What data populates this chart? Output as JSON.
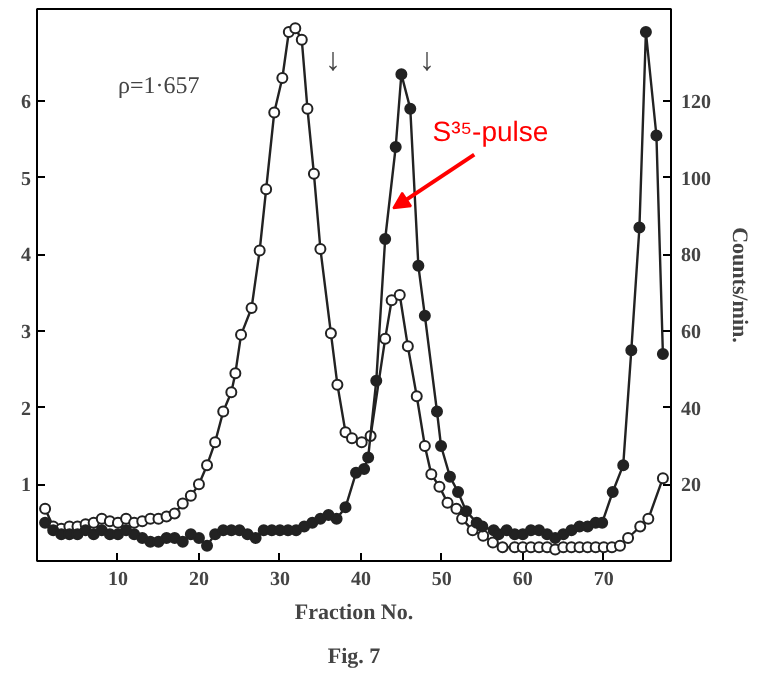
{
  "chart_data": {
    "type": "line",
    "xlabel": "Fraction No.",
    "y2label": "Counts/min.",
    "annotations": [
      "ρ=1·657",
      "Fig. 7",
      "↓",
      "↓",
      {
        "text": "S³⁵-pulse",
        "x": 44,
        "y": 4.6
      }
    ],
    "series": [
      {
        "color": "#222222",
        "marker": "open circle",
        "x": [
          1,
          2,
          3,
          4,
          5,
          6,
          7,
          8,
          9,
          10,
          11,
          12,
          13,
          14,
          15,
          16,
          17,
          18,
          19,
          20,
          21,
          22,
          23,
          24,
          24.5,
          25.2,
          26.5,
          27.5,
          28.3,
          29.3,
          30.3,
          31.1,
          31.9,
          32.7,
          33.4,
          34.2,
          35,
          36.3,
          37.1,
          38.1,
          38.9,
          40.1,
          41.2,
          43,
          43.8,
          44.8,
          45.8,
          46.9,
          47.9,
          48.7,
          49.7,
          50.7,
          51.8,
          52.5,
          53.8,
          55.1,
          56.3,
          57.5,
          59,
          60,
          61,
          62,
          63,
          64,
          65,
          66,
          67,
          68,
          69,
          70,
          71,
          72,
          73,
          74.5,
          75.5,
          77.3
        ],
        "values": [
          0.68,
          0.45,
          0.42,
          0.45,
          0.45,
          0.48,
          0.5,
          0.55,
          0.52,
          0.5,
          0.55,
          0.5,
          0.52,
          0.55,
          0.55,
          0.58,
          0.62,
          0.75,
          0.85,
          1.0,
          1.25,
          1.55,
          1.95,
          2.2,
          2.45,
          2.95,
          3.3,
          4.05,
          4.85,
          5.85,
          6.3,
          6.9,
          6.95,
          6.8,
          5.9,
          5.05,
          4.07,
          2.97,
          2.3,
          1.68,
          1.6,
          1.55,
          1.63,
          2.9,
          3.4,
          3.47,
          2.8,
          2.15,
          1.5,
          1.13,
          0.97,
          0.76,
          0.68,
          0.55,
          0.4,
          0.33,
          0.24,
          0.18,
          0.18,
          0.18,
          0.18,
          0.18,
          0.18,
          0.15,
          0.18,
          0.18,
          0.18,
          0.18,
          0.18,
          0.18,
          0.18,
          0.2,
          0.3,
          0.45,
          0.55,
          1.08
        ]
      },
      {
        "color": "#222222",
        "marker": "circle",
        "axis": "y2",
        "x": [
          1,
          2,
          3,
          4,
          5,
          6,
          7,
          8,
          9,
          10,
          11,
          12,
          13,
          14,
          15,
          16,
          17,
          18,
          19,
          20,
          21,
          22,
          23,
          24,
          25,
          26,
          27,
          28,
          29,
          30,
          31,
          32,
          33,
          34,
          35,
          36,
          37,
          38.1,
          39.4,
          40.4,
          40.9,
          41.9,
          43,
          44.3,
          45,
          46.1,
          47.1,
          47.9,
          49.4,
          49.9,
          51,
          52,
          53,
          54.3,
          55,
          56.4,
          57,
          58,
          59,
          60,
          61,
          62,
          63,
          64,
          65,
          66,
          67,
          68,
          69,
          69.8,
          71.1,
          72.4,
          73.4,
          74.4,
          75.2,
          76.5,
          77.3
        ],
        "values": [
          10,
          8,
          7,
          7,
          7,
          8,
          7,
          8,
          7,
          7,
          8,
          7,
          6,
          5,
          5,
          6,
          6,
          5,
          7,
          6,
          4,
          7,
          8,
          8,
          8,
          7,
          6,
          8,
          8,
          8,
          8,
          8,
          9,
          10,
          11,
          12,
          11,
          14,
          23,
          24,
          27,
          47,
          84,
          108,
          127,
          118,
          77,
          64,
          39,
          30,
          22,
          18,
          13,
          10,
          9,
          8,
          7,
          8,
          7,
          7,
          8,
          8,
          7,
          6,
          7,
          8,
          9,
          9,
          10,
          10,
          18,
          25,
          55,
          87,
          138,
          111,
          54
        ]
      }
    ],
    "xlim": [
      0,
      78.3
    ],
    "xticks": [
      10,
      20,
      30,
      40,
      50,
      60,
      70
    ],
    "ylim": [
      0,
      7.2
    ],
    "yticks": [
      1,
      2,
      3,
      4,
      5,
      6
    ],
    "y2lim": [
      0,
      144
    ],
    "y2ticks": [
      20,
      40,
      60,
      80,
      100,
      120
    ],
    "grid": false
  }
}
